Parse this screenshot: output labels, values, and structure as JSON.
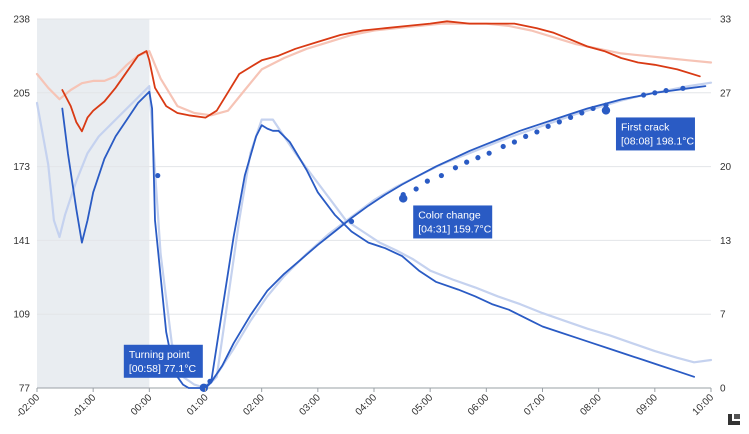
{
  "chart_data": {
    "type": "line",
    "x_unit": "minutes",
    "x_ticks": [
      "-02:00",
      "-01:00",
      "00:00",
      "01:00",
      "02:00",
      "03:00",
      "04:00",
      "05:00",
      "06:00",
      "07:00",
      "08:00",
      "09:00",
      "10:00"
    ],
    "xlim": [
      -2,
      10
    ],
    "y_left_ticks": [
      "238",
      "205",
      "173",
      "141",
      "109",
      "77"
    ],
    "y_left_lim": [
      77,
      238
    ],
    "y_right_ticks": [
      "33",
      "27",
      "20",
      "13",
      "7",
      "0"
    ],
    "y_right_lim": [
      0,
      33
    ],
    "grid": true,
    "preheat_shaded_range": [
      -2,
      0
    ],
    "colors": {
      "bean_temp": "#2a5bc4",
      "bean_temp_ref": "#c5d2ef",
      "env_temp": "#d93a14",
      "env_temp_ref": "#f6c4b6",
      "ror": "#2a5bc4",
      "ror_ref": "#c5d2ef",
      "shade": "#e9edf1",
      "annotation_bg": "#2a5bc4"
    },
    "series": [
      {
        "id": "bean_temp",
        "axis": "right",
        "x": [
          -1.55,
          -1.45,
          -1.3,
          -1.2,
          -1.1,
          -1.0,
          -0.8,
          -0.6,
          -0.4,
          -0.2,
          0.0,
          0.05,
          0.1,
          0.2,
          0.3,
          0.4,
          0.5,
          0.6,
          0.7,
          0.8,
          0.9,
          1.0,
          1.1,
          1.3,
          1.5,
          1.7,
          1.9,
          2.0,
          2.1,
          2.2,
          2.3,
          2.5,
          2.8,
          3.0,
          3.3,
          3.6,
          3.9,
          4.2,
          4.5,
          4.8,
          5.1,
          5.5,
          5.8,
          6.1,
          6.4,
          6.8,
          7.0,
          7.3,
          7.6,
          7.9,
          8.2,
          8.5,
          8.8,
          9.1,
          9.4,
          9.7
        ],
        "y": [
          25.0,
          21.0,
          16.0,
          13.0,
          15.0,
          17.5,
          20.5,
          22.5,
          24.0,
          25.5,
          26.5,
          25.0,
          15.0,
          10.0,
          5.0,
          2.5,
          1.0,
          0.3,
          0.0,
          0.0,
          0.0,
          0.0,
          0.5,
          7.0,
          13.5,
          19.0,
          22.5,
          23.5,
          23.2,
          23.0,
          23.0,
          22.0,
          19.5,
          17.5,
          15.5,
          14.0,
          13.0,
          12.5,
          11.8,
          10.5,
          9.5,
          8.8,
          8.2,
          7.5,
          7.0,
          6.0,
          5.5,
          5.0,
          4.5,
          4.0,
          3.5,
          3.0,
          2.5,
          2.0,
          1.5,
          1.0
        ]
      },
      {
        "id": "bean_temp_ref",
        "axis": "right",
        "x": [
          -2.0,
          -1.8,
          -1.7,
          -1.6,
          -1.5,
          -1.3,
          -1.1,
          -0.9,
          -0.6,
          -0.3,
          0.0,
          0.2,
          0.4,
          0.6,
          0.8,
          1.0,
          1.2,
          1.4,
          1.6,
          1.8,
          2.0,
          2.2,
          2.4,
          2.6,
          2.9,
          3.2,
          3.5,
          3.8,
          4.1,
          4.4,
          4.7,
          5.0,
          5.4,
          5.8,
          6.2,
          6.6,
          7.0,
          7.4,
          7.8,
          8.2,
          8.6,
          9.0,
          9.4,
          9.7,
          10.0
        ],
        "y": [
          25.5,
          20.0,
          15.0,
          13.5,
          15.5,
          18.5,
          21.0,
          22.5,
          24.0,
          25.5,
          27.0,
          12.0,
          4.0,
          1.0,
          0.3,
          0.0,
          1.0,
          8.0,
          15.0,
          21.0,
          24.0,
          24.0,
          22.5,
          21.0,
          19.0,
          17.0,
          15.0,
          14.0,
          13.0,
          12.3,
          11.5,
          10.5,
          9.7,
          9.0,
          8.2,
          7.5,
          6.7,
          6.0,
          5.3,
          4.7,
          4.0,
          3.3,
          2.7,
          2.3,
          2.5
        ]
      },
      {
        "id": "env_temp",
        "axis": "left",
        "x": [
          -1.55,
          -1.4,
          -1.3,
          -1.2,
          -1.1,
          -1.0,
          -0.8,
          -0.6,
          -0.4,
          -0.2,
          -0.05,
          0.0,
          0.1,
          0.3,
          0.5,
          0.7,
          1.0,
          1.2,
          1.4,
          1.6,
          1.8,
          2.0,
          2.3,
          2.6,
          3.0,
          3.4,
          3.8,
          4.2,
          4.6,
          5.0,
          5.3,
          5.7,
          6.1,
          6.5,
          6.9,
          7.2,
          7.5,
          7.8,
          8.1,
          8.4,
          8.7,
          9.0,
          9.4,
          9.8
        ],
        "y": [
          207,
          200,
          193,
          189,
          195,
          198,
          202,
          208,
          215,
          222,
          224,
          220,
          208,
          200,
          197,
          196,
          195,
          198,
          206,
          214,
          217,
          220,
          222,
          225,
          228,
          231,
          233,
          234,
          235,
          236,
          237,
          236,
          236,
          236,
          234,
          232,
          229,
          226,
          224,
          221,
          219,
          218,
          216,
          213
        ]
      },
      {
        "id": "env_temp_ref",
        "axis": "left",
        "x": [
          -2.0,
          -1.8,
          -1.6,
          -1.4,
          -1.2,
          -1.0,
          -0.8,
          -0.6,
          -0.4,
          -0.2,
          0.0,
          0.2,
          0.5,
          0.8,
          1.1,
          1.4,
          1.7,
          2.0,
          2.4,
          2.8,
          3.2,
          3.6,
          4.0,
          4.4,
          4.8,
          5.2,
          5.6,
          6.0,
          6.4,
          6.8,
          7.2,
          7.6,
          8.0,
          8.4,
          8.8,
          9.2,
          9.6,
          10.0
        ],
        "y": [
          214,
          208,
          203,
          207,
          210,
          211,
          211,
          213,
          218,
          222,
          224,
          212,
          200,
          197,
          196,
          198,
          207,
          216,
          221,
          225,
          228,
          231,
          233,
          234,
          235,
          236,
          236,
          236,
          235,
          233,
          230,
          227,
          225,
          223,
          222,
          221,
          220,
          219
        ]
      },
      {
        "id": "ror",
        "axis": "right",
        "x": [
          0.97,
          1.1,
          1.3,
          1.5,
          1.8,
          2.1,
          2.4,
          2.7,
          3.0,
          3.3,
          3.6,
          3.9,
          4.2,
          4.5,
          4.8,
          5.1,
          5.4,
          5.7,
          6.0,
          6.3,
          6.6,
          6.9,
          7.2,
          7.5,
          7.8,
          8.1,
          8.4,
          8.7,
          9.0,
          9.3,
          9.6,
          9.9
        ],
        "y": [
          0.0,
          0.5,
          2.0,
          4.0,
          6.5,
          8.7,
          10.2,
          11.5,
          12.8,
          14.0,
          15.2,
          16.3,
          17.3,
          18.2,
          19.0,
          19.8,
          20.5,
          21.2,
          21.8,
          22.4,
          23.0,
          23.5,
          24.0,
          24.5,
          25.0,
          25.4,
          25.8,
          26.1,
          26.4,
          26.6,
          26.8,
          27.0
        ]
      },
      {
        "id": "ror_ref",
        "axis": "right",
        "x": [
          0.97,
          1.2,
          1.5,
          1.8,
          2.1,
          2.4,
          2.8,
          3.2,
          3.6,
          4.0,
          4.4,
          4.8,
          5.2,
          5.6,
          6.0,
          6.4,
          6.8,
          7.2,
          7.6,
          8.0,
          8.4,
          8.8,
          9.2,
          9.6,
          10.0
        ],
        "y": [
          0.0,
          1.2,
          3.5,
          6.0,
          8.2,
          10.0,
          12.0,
          13.8,
          15.3,
          16.8,
          18.0,
          19.0,
          20.0,
          20.8,
          21.6,
          22.4,
          23.1,
          23.8,
          24.5,
          25.1,
          25.7,
          26.2,
          26.6,
          27.0,
          27.3
        ]
      }
    ],
    "markers": {
      "series": "ror",
      "x": [
        0.15,
        1.08,
        3.6,
        4.52,
        4.75,
        4.95,
        5.2,
        5.45,
        5.65,
        5.85,
        6.05,
        6.3,
        6.5,
        6.7,
        6.9,
        7.1,
        7.3,
        7.5,
        7.7,
        7.9,
        8.13,
        8.8,
        9.0,
        9.2,
        9.5
      ],
      "y": [
        19.0,
        0.6,
        14.9,
        17.3,
        17.8,
        18.5,
        19.0,
        19.7,
        20.2,
        20.6,
        21.0,
        21.6,
        22.0,
        22.5,
        22.9,
        23.4,
        23.8,
        24.2,
        24.6,
        25.0,
        25.3,
        26.2,
        26.4,
        26.6,
        26.8
      ]
    },
    "annotations": [
      {
        "line1": "Turning point",
        "line2": "[00:58] 77.1°C",
        "x": 0.97,
        "y_left": 77.1
      },
      {
        "line1": "Color change",
        "line2": "[04:31] 159.7°C",
        "x": 4.52,
        "y_left": 159.7
      },
      {
        "line1": "First crack",
        "line2": "[08:08] 198.1°C",
        "x": 8.13,
        "y_left": 198.1
      }
    ]
  },
  "logo_icon": "artisan-logo-icon"
}
